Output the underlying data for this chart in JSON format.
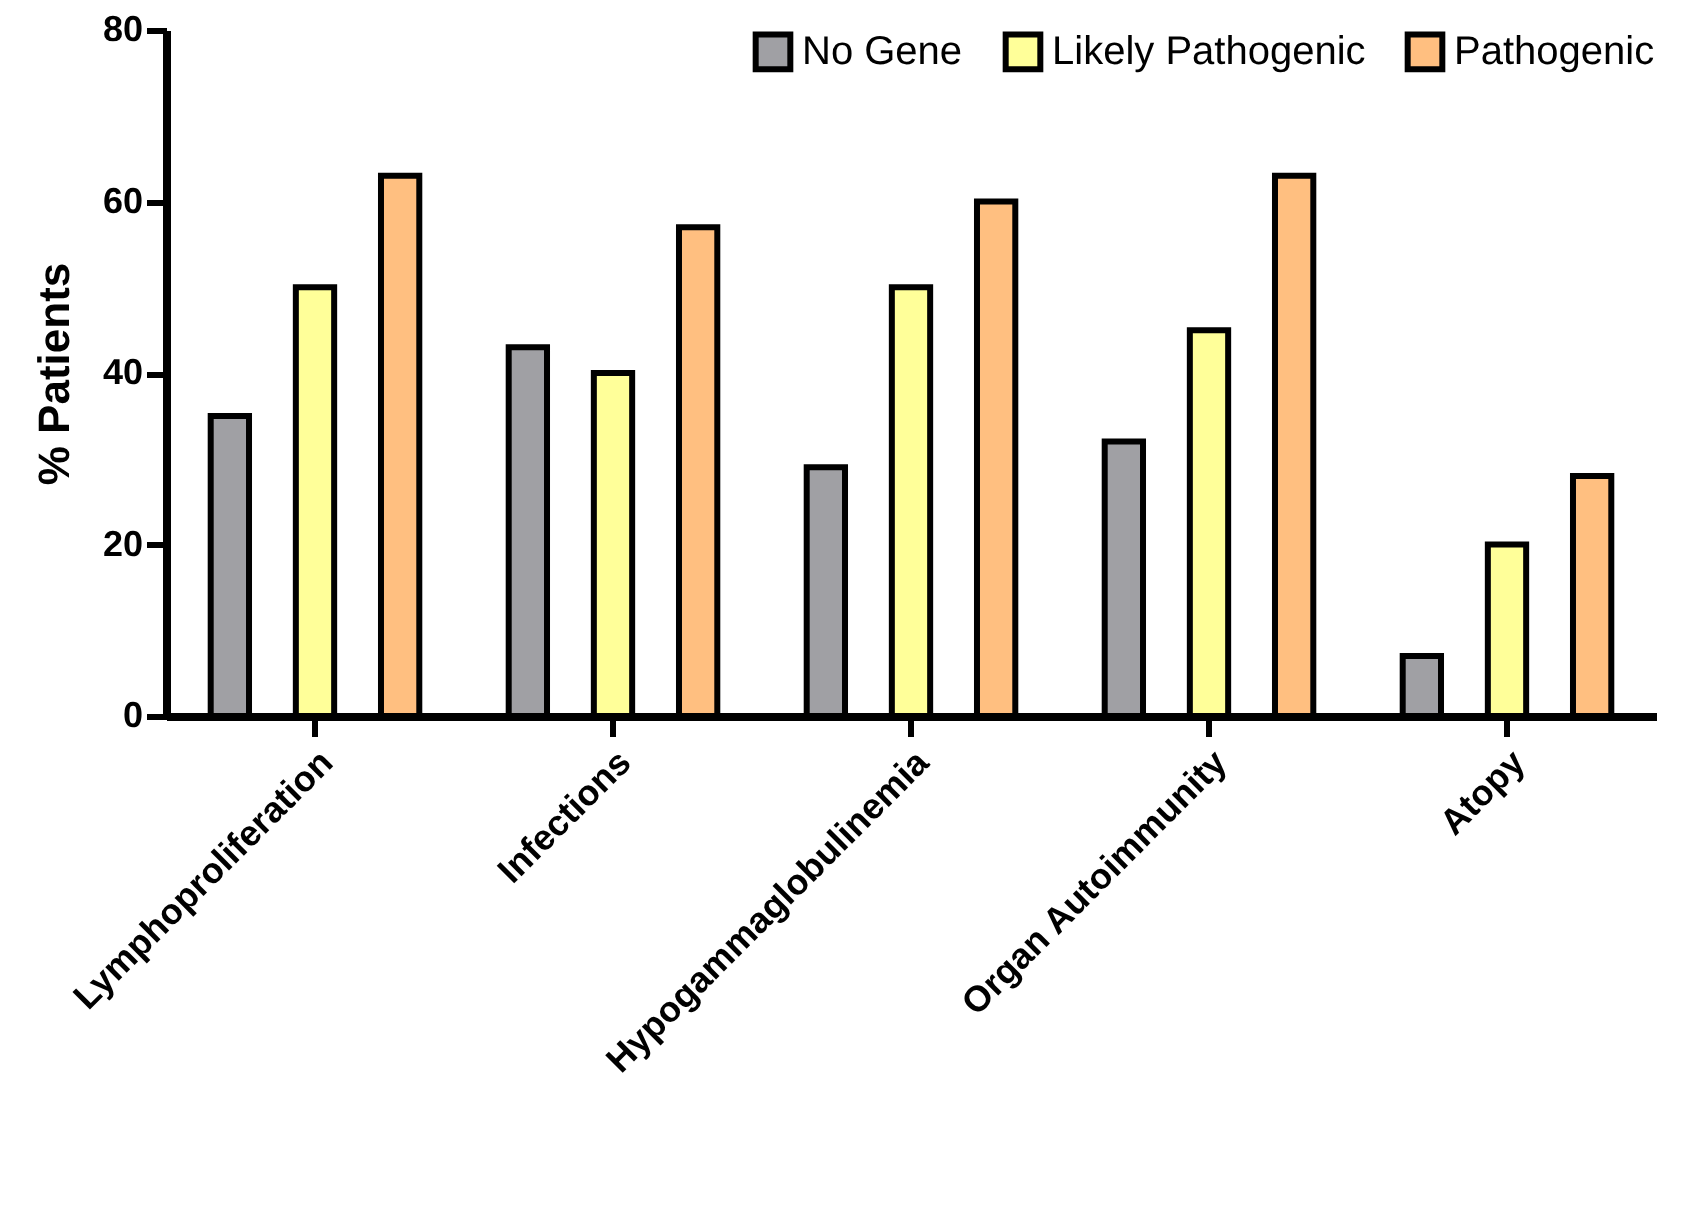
{
  "chart_data": {
    "type": "bar",
    "ylabel": "% Patients",
    "categories": [
      "Lymphoproliferation",
      "Infections",
      "Hypogammaglobulinemia",
      "Organ Autoimmunity",
      "Atopy"
    ],
    "series": [
      {
        "name": "No Gene",
        "color": "#a0a0a4",
        "values": [
          35,
          43,
          29,
          32,
          7
        ]
      },
      {
        "name": "Likely Pathogenic",
        "color": "#ffff99",
        "values": [
          50,
          40,
          50,
          45,
          20
        ]
      },
      {
        "name": "Pathogenic",
        "color": "#ffbf80",
        "values": [
          63,
          57,
          60,
          63,
          28
        ]
      }
    ],
    "ylim": [
      0,
      80
    ],
    "yticks": [
      0,
      20,
      40,
      60,
      80
    ],
    "grid": false,
    "legend": "top right"
  }
}
